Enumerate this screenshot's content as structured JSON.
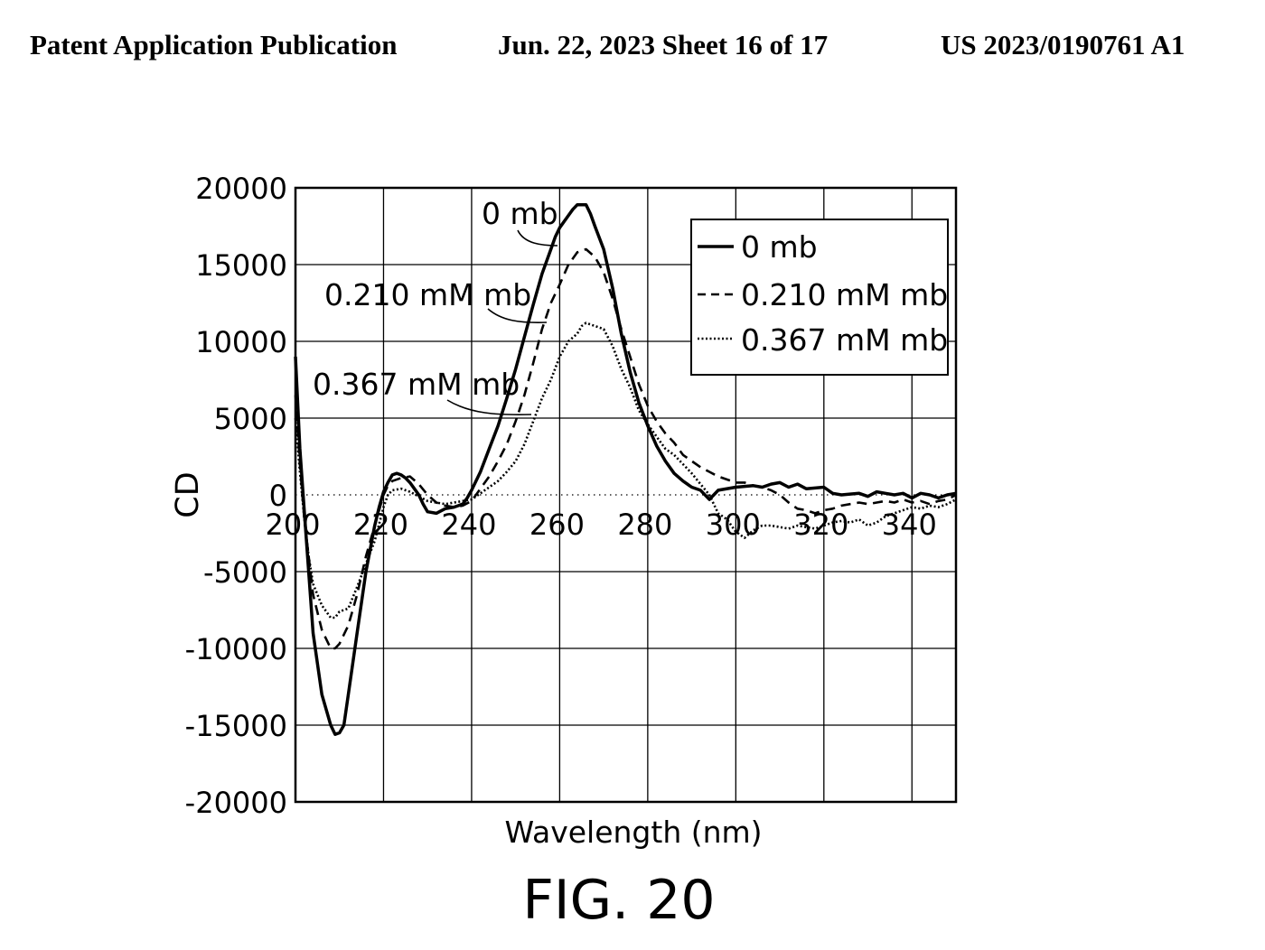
{
  "header": {
    "left": "Patent Application Publication",
    "middle": "Jun. 22, 2023  Sheet 16 of 17",
    "right": "US 2023/0190761 A1"
  },
  "figure_label": "FIG. 20",
  "chart_data": {
    "type": "line",
    "xlabel": "Wavelength (nm)",
    "ylabel": "CD",
    "xlim": [
      200,
      350
    ],
    "ylim": [
      -20000,
      20000
    ],
    "x_ticks": [
      200,
      220,
      240,
      260,
      280,
      300,
      320,
      340
    ],
    "y_ticks": [
      20000,
      15000,
      10000,
      5000,
      0,
      -5000,
      -10000,
      -15000,
      -20000
    ],
    "grid": true,
    "legend_position": "top-right",
    "series": [
      {
        "name": "0 mb",
        "style": "solid",
        "color": "#000000",
        "annotation": "0 mb",
        "points": [
          [
            200,
            9000
          ],
          [
            201,
            3000
          ],
          [
            202,
            -1000
          ],
          [
            203,
            -5000
          ],
          [
            204,
            -9000
          ],
          [
            206,
            -13000
          ],
          [
            208,
            -15000
          ],
          [
            209,
            -15600
          ],
          [
            210,
            -15500
          ],
          [
            211,
            -15000
          ],
          [
            212,
            -13000
          ],
          [
            214,
            -9000
          ],
          [
            216,
            -5000
          ],
          [
            218,
            -2000
          ],
          [
            219,
            -800
          ],
          [
            220,
            200
          ],
          [
            221,
            800
          ],
          [
            222,
            1300
          ],
          [
            223,
            1400
          ],
          [
            224,
            1300
          ],
          [
            225,
            1100
          ],
          [
            226,
            800
          ],
          [
            227,
            400
          ],
          [
            228,
            0
          ],
          [
            229,
            -600
          ],
          [
            230,
            -1100
          ],
          [
            232,
            -1200
          ],
          [
            234,
            -900
          ],
          [
            236,
            -800
          ],
          [
            238,
            -600
          ],
          [
            239,
            -200
          ],
          [
            240,
            300
          ],
          [
            242,
            1500
          ],
          [
            244,
            3000
          ],
          [
            246,
            4500
          ],
          [
            248,
            6300
          ],
          [
            250,
            8200
          ],
          [
            252,
            10300
          ],
          [
            254,
            12400
          ],
          [
            256,
            14400
          ],
          [
            258,
            16000
          ],
          [
            259,
            16800
          ],
          [
            260,
            17400
          ],
          [
            262,
            18200
          ],
          [
            263,
            18600
          ],
          [
            264,
            18900
          ],
          [
            266,
            18900
          ],
          [
            267,
            18300
          ],
          [
            268,
            17500
          ],
          [
            270,
            16000
          ],
          [
            272,
            13500
          ],
          [
            274,
            10500
          ],
          [
            276,
            8000
          ],
          [
            278,
            6000
          ],
          [
            280,
            4500
          ],
          [
            282,
            3200
          ],
          [
            284,
            2200
          ],
          [
            286,
            1400
          ],
          [
            288,
            900
          ],
          [
            290,
            500
          ],
          [
            292,
            300
          ],
          [
            294,
            -300
          ],
          [
            295,
            0
          ],
          [
            296,
            300
          ],
          [
            300,
            500
          ],
          [
            304,
            600
          ],
          [
            306,
            500
          ],
          [
            308,
            700
          ],
          [
            310,
            800
          ],
          [
            312,
            500
          ],
          [
            314,
            700
          ],
          [
            316,
            400
          ],
          [
            320,
            500
          ],
          [
            322,
            100
          ],
          [
            324,
            0
          ],
          [
            328,
            100
          ],
          [
            330,
            -100
          ],
          [
            332,
            200
          ],
          [
            334,
            100
          ],
          [
            336,
            0
          ],
          [
            338,
            100
          ],
          [
            340,
            -200
          ],
          [
            342,
            100
          ],
          [
            344,
            0
          ],
          [
            346,
            -200
          ],
          [
            348,
            0
          ],
          [
            350,
            100
          ]
        ]
      },
      {
        "name": "0.210 mM mb",
        "style": "dashed",
        "color": "#000000",
        "annotation": "0.210 mM mb",
        "points": [
          [
            200,
            6500
          ],
          [
            201,
            2000
          ],
          [
            202,
            -1500
          ],
          [
            203,
            -4000
          ],
          [
            204,
            -6500
          ],
          [
            206,
            -8800
          ],
          [
            208,
            -10000
          ],
          [
            209,
            -10000
          ],
          [
            210,
            -9700
          ],
          [
            212,
            -8500
          ],
          [
            214,
            -6500
          ],
          [
            216,
            -4000
          ],
          [
            218,
            -2000
          ],
          [
            220,
            0
          ],
          [
            221,
            600
          ],
          [
            222,
            900
          ],
          [
            224,
            1100
          ],
          [
            226,
            1200
          ],
          [
            228,
            700
          ],
          [
            230,
            0
          ],
          [
            232,
            -500
          ],
          [
            234,
            -700
          ],
          [
            236,
            -800
          ],
          [
            238,
            -700
          ],
          [
            240,
            -400
          ],
          [
            242,
            400
          ],
          [
            244,
            1200
          ],
          [
            246,
            2200
          ],
          [
            248,
            3300
          ],
          [
            250,
            4800
          ],
          [
            252,
            6500
          ],
          [
            254,
            8600
          ],
          [
            256,
            10800
          ],
          [
            258,
            12500
          ],
          [
            260,
            13700
          ],
          [
            262,
            15000
          ],
          [
            264,
            15800
          ],
          [
            266,
            16000
          ],
          [
            268,
            15500
          ],
          [
            270,
            14500
          ],
          [
            272,
            12800
          ],
          [
            274,
            10800
          ],
          [
            276,
            9000
          ],
          [
            278,
            7200
          ],
          [
            280,
            5800
          ],
          [
            282,
            4800
          ],
          [
            284,
            4000
          ],
          [
            286,
            3400
          ],
          [
            288,
            2600
          ],
          [
            290,
            2200
          ],
          [
            292,
            1800
          ],
          [
            294,
            1500
          ],
          [
            296,
            1200
          ],
          [
            298,
            1000
          ],
          [
            300,
            800
          ],
          [
            302,
            800
          ],
          [
            304,
            600
          ],
          [
            306,
            500
          ],
          [
            308,
            300
          ],
          [
            310,
            0
          ],
          [
            312,
            -500
          ],
          [
            314,
            -900
          ],
          [
            316,
            -1000
          ],
          [
            318,
            -1200
          ],
          [
            320,
            -1000
          ],
          [
            322,
            -900
          ],
          [
            324,
            -700
          ],
          [
            326,
            -600
          ],
          [
            328,
            -500
          ],
          [
            330,
            -600
          ],
          [
            332,
            -500
          ],
          [
            334,
            -400
          ],
          [
            336,
            -500
          ],
          [
            338,
            -300
          ],
          [
            340,
            -500
          ],
          [
            342,
            -400
          ],
          [
            344,
            -600
          ],
          [
            346,
            -400
          ],
          [
            348,
            -300
          ],
          [
            350,
            0
          ]
        ]
      },
      {
        "name": "0.367 mM mb",
        "style": "dotted",
        "color": "#000000",
        "annotation": "0.367 mM mb",
        "points": [
          [
            200,
            5000
          ],
          [
            201,
            1500
          ],
          [
            202,
            -1500
          ],
          [
            203,
            -4000
          ],
          [
            204,
            -5800
          ],
          [
            206,
            -7200
          ],
          [
            208,
            -8000
          ],
          [
            209,
            -8000
          ],
          [
            210,
            -7600
          ],
          [
            212,
            -7400
          ],
          [
            214,
            -6000
          ],
          [
            216,
            -4500
          ],
          [
            218,
            -3000
          ],
          [
            220,
            -800
          ],
          [
            221,
            0
          ],
          [
            222,
            300
          ],
          [
            224,
            400
          ],
          [
            226,
            200
          ],
          [
            228,
            -100
          ],
          [
            230,
            -400
          ],
          [
            232,
            -500
          ],
          [
            234,
            -600
          ],
          [
            236,
            -500
          ],
          [
            238,
            -400
          ],
          [
            240,
            -300
          ],
          [
            242,
            100
          ],
          [
            244,
            500
          ],
          [
            246,
            900
          ],
          [
            248,
            1500
          ],
          [
            250,
            2200
          ],
          [
            252,
            3300
          ],
          [
            254,
            4800
          ],
          [
            256,
            6300
          ],
          [
            258,
            7500
          ],
          [
            260,
            9000
          ],
          [
            262,
            10000
          ],
          [
            264,
            10500
          ],
          [
            265,
            11000
          ],
          [
            266,
            11200
          ],
          [
            268,
            11000
          ],
          [
            270,
            10800
          ],
          [
            272,
            9700
          ],
          [
            274,
            8200
          ],
          [
            276,
            7000
          ],
          [
            278,
            5500
          ],
          [
            280,
            4600
          ],
          [
            282,
            3800
          ],
          [
            284,
            3000
          ],
          [
            286,
            2600
          ],
          [
            288,
            2000
          ],
          [
            290,
            1400
          ],
          [
            292,
            700
          ],
          [
            294,
            0
          ],
          [
            296,
            -1200
          ],
          [
            298,
            -1600
          ],
          [
            300,
            -2400
          ],
          [
            302,
            -2800
          ],
          [
            304,
            -2300
          ],
          [
            306,
            -2000
          ],
          [
            308,
            -2000
          ],
          [
            310,
            -2100
          ],
          [
            312,
            -2200
          ],
          [
            314,
            -2000
          ],
          [
            316,
            -2100
          ],
          [
            318,
            -2200
          ],
          [
            320,
            -2000
          ],
          [
            322,
            -1800
          ],
          [
            324,
            -1700
          ],
          [
            326,
            -1800
          ],
          [
            328,
            -1600
          ],
          [
            330,
            -2000
          ],
          [
            332,
            -1800
          ],
          [
            334,
            -1400
          ],
          [
            336,
            -1200
          ],
          [
            338,
            -1000
          ],
          [
            340,
            -800
          ],
          [
            342,
            -900
          ],
          [
            344,
            -700
          ],
          [
            346,
            -800
          ],
          [
            348,
            -600
          ],
          [
            350,
            -300
          ]
        ]
      }
    ]
  }
}
